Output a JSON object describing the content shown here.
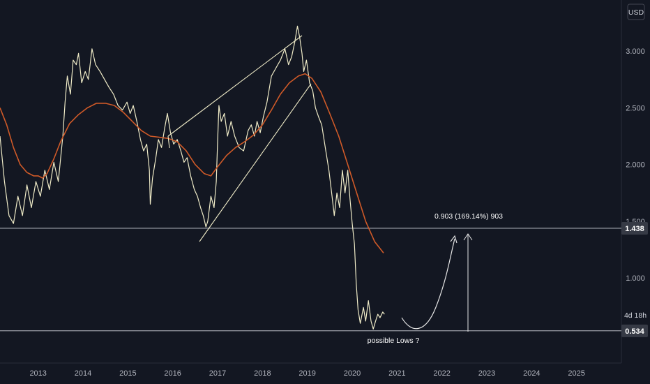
{
  "chart_data": {
    "type": "line",
    "currency_label": "USD",
    "y_ticks": [
      "3.000",
      "2.500",
      "2.000",
      "1.500",
      "1.000"
    ],
    "x_ticks": [
      "2013",
      "2014",
      "2015",
      "2016",
      "2017",
      "2018",
      "2019",
      "2020",
      "2021",
      "2022",
      "2023",
      "2024",
      "2025"
    ],
    "ylim": [
      0.25,
      3.45
    ],
    "xlim": [
      2012.15,
      2026.0
    ],
    "series": [
      {
        "color": "#f0ecc8",
        "points": [
          [
            2012.15,
            2.25
          ],
          [
            2012.25,
            1.85
          ],
          [
            2012.35,
            1.55
          ],
          [
            2012.45,
            1.48
          ],
          [
            2012.55,
            1.72
          ],
          [
            2012.65,
            1.55
          ],
          [
            2012.75,
            1.82
          ],
          [
            2012.85,
            1.62
          ],
          [
            2012.95,
            1.85
          ],
          [
            2013.05,
            1.72
          ],
          [
            2013.15,
            1.95
          ],
          [
            2013.25,
            1.78
          ],
          [
            2013.35,
            2.02
          ],
          [
            2013.45,
            1.85
          ],
          [
            2013.55,
            2.25
          ],
          [
            2013.6,
            2.55
          ],
          [
            2013.65,
            2.78
          ],
          [
            2013.72,
            2.62
          ],
          [
            2013.78,
            2.92
          ],
          [
            2013.85,
            2.88
          ],
          [
            2013.9,
            2.98
          ],
          [
            2013.97,
            2.72
          ],
          [
            2014.05,
            2.82
          ],
          [
            2014.12,
            2.75
          ],
          [
            2014.2,
            3.02
          ],
          [
            2014.28,
            2.88
          ],
          [
            2014.38,
            2.82
          ],
          [
            2014.48,
            2.75
          ],
          [
            2014.58,
            2.68
          ],
          [
            2014.68,
            2.62
          ],
          [
            2014.78,
            2.52
          ],
          [
            2014.88,
            2.48
          ],
          [
            2014.98,
            2.55
          ],
          [
            2015.05,
            2.45
          ],
          [
            2015.12,
            2.52
          ],
          [
            2015.2,
            2.38
          ],
          [
            2015.28,
            2.22
          ],
          [
            2015.35,
            2.12
          ],
          [
            2015.42,
            2.18
          ],
          [
            2015.48,
            1.95
          ],
          [
            2015.5,
            1.65
          ],
          [
            2015.55,
            1.88
          ],
          [
            2015.62,
            2.05
          ],
          [
            2015.68,
            2.22
          ],
          [
            2015.75,
            2.15
          ],
          [
            2015.82,
            2.32
          ],
          [
            2015.88,
            2.45
          ],
          [
            2015.95,
            2.28
          ],
          [
            2016.02,
            2.18
          ],
          [
            2016.1,
            2.22
          ],
          [
            2016.18,
            2.12
          ],
          [
            2016.25,
            2.02
          ],
          [
            2016.32,
            2.06
          ],
          [
            2016.4,
            1.9
          ],
          [
            2016.48,
            1.78
          ],
          [
            2016.55,
            1.72
          ],
          [
            2016.62,
            1.62
          ],
          [
            2016.68,
            1.55
          ],
          [
            2016.74,
            1.45
          ],
          [
            2016.78,
            1.5
          ],
          [
            2016.85,
            1.72
          ],
          [
            2016.92,
            1.62
          ],
          [
            2016.97,
            1.85
          ],
          [
            2017.0,
            2.2
          ],
          [
            2017.03,
            2.52
          ],
          [
            2017.08,
            2.38
          ],
          [
            2017.15,
            2.45
          ],
          [
            2017.22,
            2.25
          ],
          [
            2017.3,
            2.38
          ],
          [
            2017.38,
            2.25
          ],
          [
            2017.48,
            2.15
          ],
          [
            2017.58,
            2.12
          ],
          [
            2017.68,
            2.3
          ],
          [
            2017.75,
            2.35
          ],
          [
            2017.82,
            2.25
          ],
          [
            2017.88,
            2.38
          ],
          [
            2017.95,
            2.28
          ],
          [
            2018.02,
            2.42
          ],
          [
            2018.1,
            2.55
          ],
          [
            2018.2,
            2.78
          ],
          [
            2018.3,
            2.85
          ],
          [
            2018.4,
            2.92
          ],
          [
            2018.5,
            3.02
          ],
          [
            2018.58,
            2.88
          ],
          [
            2018.65,
            2.95
          ],
          [
            2018.72,
            3.08
          ],
          [
            2018.78,
            3.22
          ],
          [
            2018.83,
            3.12
          ],
          [
            2018.88,
            2.98
          ],
          [
            2018.92,
            2.82
          ],
          [
            2018.98,
            2.92
          ],
          [
            2019.05,
            2.72
          ],
          [
            2019.12,
            2.65
          ],
          [
            2019.18,
            2.5
          ],
          [
            2019.25,
            2.42
          ],
          [
            2019.32,
            2.35
          ],
          [
            2019.4,
            2.15
          ],
          [
            2019.48,
            1.95
          ],
          [
            2019.55,
            1.72
          ],
          [
            2019.6,
            1.55
          ],
          [
            2019.66,
            1.75
          ],
          [
            2019.72,
            1.62
          ],
          [
            2019.78,
            1.95
          ],
          [
            2019.84,
            1.75
          ],
          [
            2019.9,
            1.95
          ],
          [
            2019.95,
            1.7
          ],
          [
            2020.0,
            1.48
          ],
          [
            2020.05,
            1.3
          ],
          [
            2020.09,
            0.95
          ],
          [
            2020.13,
            0.72
          ],
          [
            2020.18,
            0.6
          ],
          [
            2020.25,
            0.74
          ],
          [
            2020.3,
            0.62
          ],
          [
            2020.36,
            0.8
          ],
          [
            2020.42,
            0.62
          ],
          [
            2020.47,
            0.55
          ],
          [
            2020.52,
            0.62
          ],
          [
            2020.57,
            0.68
          ],
          [
            2020.62,
            0.65
          ],
          [
            2020.68,
            0.7
          ],
          [
            2020.72,
            0.68
          ]
        ]
      },
      {
        "color": "#d05a28",
        "points": [
          [
            2012.15,
            2.5
          ],
          [
            2012.3,
            2.35
          ],
          [
            2012.45,
            2.15
          ],
          [
            2012.6,
            2.0
          ],
          [
            2012.75,
            1.93
          ],
          [
            2012.9,
            1.9
          ],
          [
            2013.0,
            1.9
          ],
          [
            2013.1,
            1.88
          ],
          [
            2013.2,
            1.92
          ],
          [
            2013.35,
            2.05
          ],
          [
            2013.5,
            2.2
          ],
          [
            2013.7,
            2.36
          ],
          [
            2013.9,
            2.44
          ],
          [
            2014.1,
            2.5
          ],
          [
            2014.3,
            2.54
          ],
          [
            2014.5,
            2.54
          ],
          [
            2014.7,
            2.52
          ],
          [
            2014.9,
            2.46
          ],
          [
            2015.1,
            2.38
          ],
          [
            2015.3,
            2.3
          ],
          [
            2015.5,
            2.25
          ],
          [
            2015.7,
            2.24
          ],
          [
            2015.9,
            2.23
          ],
          [
            2016.1,
            2.2
          ],
          [
            2016.3,
            2.12
          ],
          [
            2016.5,
            2.0
          ],
          [
            2016.7,
            1.92
          ],
          [
            2016.85,
            1.9
          ],
          [
            2017.0,
            1.98
          ],
          [
            2017.2,
            2.08
          ],
          [
            2017.4,
            2.15
          ],
          [
            2017.6,
            2.2
          ],
          [
            2017.8,
            2.26
          ],
          [
            2018.0,
            2.35
          ],
          [
            2018.2,
            2.48
          ],
          [
            2018.4,
            2.62
          ],
          [
            2018.6,
            2.72
          ],
          [
            2018.8,
            2.78
          ],
          [
            2018.95,
            2.8
          ],
          [
            2019.1,
            2.76
          ],
          [
            2019.3,
            2.64
          ],
          [
            2019.5,
            2.45
          ],
          [
            2019.7,
            2.25
          ],
          [
            2019.9,
            2.0
          ],
          [
            2020.1,
            1.75
          ],
          [
            2020.3,
            1.5
          ],
          [
            2020.5,
            1.32
          ],
          [
            2020.7,
            1.22
          ]
        ]
      }
    ],
    "horizontal_levels": [
      {
        "value": 1.438,
        "label": "1.438"
      },
      {
        "value": 0.534,
        "label": "0.534"
      }
    ],
    "countdown_label": "4d 18h",
    "annotations": {
      "projection_label": "0.903 (169.14%) 903",
      "lows_label": "possible Lows ?"
    }
  }
}
